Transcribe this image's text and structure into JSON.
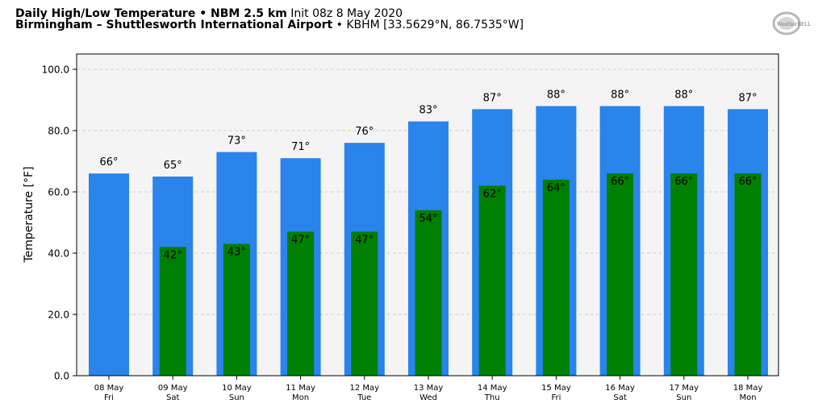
{
  "header": {
    "title_bold": "Daily High/Low Temperature • NBM 2.5 km",
    "init": "Init 08z 8 May 2020",
    "station_bold": "Birmingham – Shuttlesworth International Airport",
    "station_info": "• KBHM [33.5629°N, 86.7535°W]"
  },
  "logo": {
    "text": "WeatherBELL"
  },
  "chart_data": {
    "type": "bar",
    "ylabel": "Temperature [°F]",
    "ylim": [
      0,
      105
    ],
    "yticks": [
      "0.0",
      "20.0",
      "40.0",
      "60.0",
      "80.0",
      "100.0"
    ],
    "grid": true,
    "categories": [
      {
        "date": "08 May",
        "day": "Fri"
      },
      {
        "date": "09 May",
        "day": "Sat"
      },
      {
        "date": "10 May",
        "day": "Sun"
      },
      {
        "date": "11 May",
        "day": "Mon"
      },
      {
        "date": "12 May",
        "day": "Tue"
      },
      {
        "date": "13 May",
        "day": "Wed"
      },
      {
        "date": "14 May",
        "day": "Thu"
      },
      {
        "date": "15 May",
        "day": "Fri"
      },
      {
        "date": "16 May",
        "day": "Sat"
      },
      {
        "date": "17 May",
        "day": "Sun"
      },
      {
        "date": "18 May",
        "day": "Mon"
      }
    ],
    "series": [
      {
        "values": [
          66,
          65,
          73,
          71,
          76,
          83,
          87,
          88,
          88,
          88,
          87
        ],
        "labels": [
          "66°",
          "65°",
          "73°",
          "71°",
          "76°",
          "83°",
          "87°",
          "88°",
          "88°",
          "88°",
          "87°"
        ],
        "color": "#2b83ec"
      },
      {
        "values": [
          null,
          42,
          43,
          47,
          47,
          54,
          62,
          64,
          66,
          66,
          66
        ],
        "labels": [
          "",
          "42°",
          "43°",
          "47°",
          "47°",
          "54°",
          "62°",
          "64°",
          "66°",
          "66°",
          "66°"
        ],
        "color": "#008000"
      }
    ]
  }
}
